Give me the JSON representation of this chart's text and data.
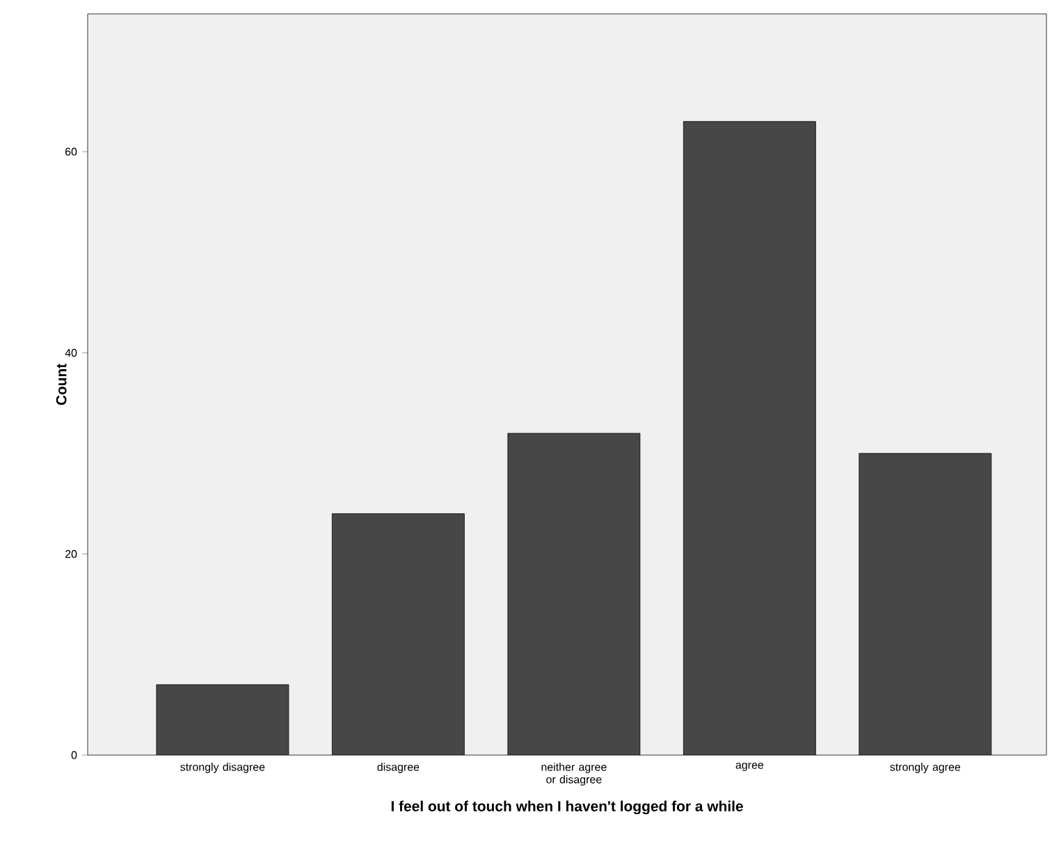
{
  "chart_data": {
    "type": "bar",
    "xlabel": "I feel out of touch when I haven't logged for a while",
    "ylabel": "Count",
    "categories": [
      "strongly disagree",
      "disagree",
      "neither agree or disagree",
      "agree",
      "strongly agree"
    ],
    "values": [
      7,
      24,
      32,
      63,
      30
    ],
    "color": "#474747",
    "ylim": [
      0,
      73.7
    ],
    "yticks": [
      0,
      20,
      40,
      60
    ],
    "grid": false
  }
}
